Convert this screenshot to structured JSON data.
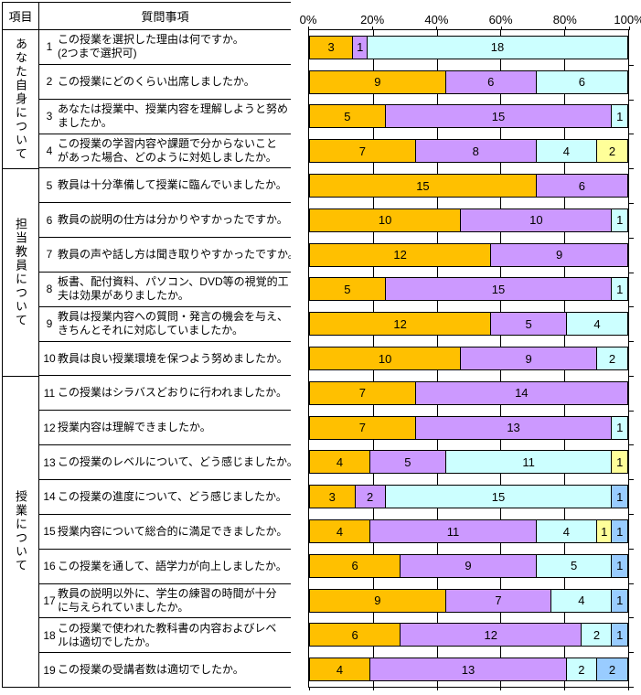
{
  "table": {
    "header": {
      "items": "項目",
      "questions": "質問事項"
    },
    "groups": [
      {
        "label": "あなた自身について",
        "rows": 4
      },
      {
        "label": "担当教員について",
        "rows": 6
      },
      {
        "label": "授業について",
        "rows": 9
      }
    ],
    "questions": [
      {
        "no": "1",
        "lines": [
          "この授業を選択した理由は何ですか。",
          "(2つまで選択可)"
        ]
      },
      {
        "no": "2",
        "lines": [
          "この授業にどのくらい出席しましたか。"
        ]
      },
      {
        "no": "3",
        "lines": [
          "あなたは授業中、授業内容を理解しようと努め",
          "ましたか。"
        ]
      },
      {
        "no": "4",
        "lines": [
          "この授業の学習内容や課題で分からないこと",
          "があった場合、どのように対処しましたか。"
        ]
      },
      {
        "no": "5",
        "lines": [
          "教員は十分準備して授業に臨んでいましたか。"
        ]
      },
      {
        "no": "6",
        "lines": [
          "教員の説明の仕方は分かりやすかったですか。"
        ]
      },
      {
        "no": "7",
        "lines": [
          "教員の声や話し方は聞き取りやすかったですか。"
        ]
      },
      {
        "no": "8",
        "lines": [
          "板書、配付資料、パソコン、DVD等の視覚的工",
          "夫は効果がありましたか。"
        ]
      },
      {
        "no": "9",
        "lines": [
          "教員は授業内容への質問・発言の機会を与え、",
          "きちんとそれに対応していましたか。"
        ]
      },
      {
        "no": "10",
        "lines": [
          "教員は良い授業環境を保つよう努めましたか。"
        ]
      },
      {
        "no": "11",
        "lines": [
          "この授業はシラバスどおりに行われましたか。"
        ]
      },
      {
        "no": "12",
        "lines": [
          "授業内容は理解できましたか。"
        ]
      },
      {
        "no": "13",
        "lines": [
          "この授業のレベルについて、どう感じましたか。"
        ]
      },
      {
        "no": "14",
        "lines": [
          "この授業の進度について、どう感じましたか。"
        ]
      },
      {
        "no": "15",
        "lines": [
          "授業内容について総合的に満足できましたか。"
        ]
      },
      {
        "no": "16",
        "lines": [
          "この授業を通して、語学力が向上しましたか。"
        ]
      },
      {
        "no": "17",
        "lines": [
          "教員の説明以外に、学生の練習の時間が十分",
          "に与えられていましたか。"
        ]
      },
      {
        "no": "18",
        "lines": [
          "この授業で使われた教科書の内容およびレベ",
          "ルは適切でしたか。"
        ]
      },
      {
        "no": "19",
        "lines": [
          "この授業の受講者数は適切でしたか。"
        ]
      }
    ]
  },
  "chart_data": {
    "type": "bar",
    "orientation": "horizontal",
    "stacked": true,
    "grid": true,
    "value_axis": {
      "position": "top",
      "min": 0,
      "max": 100,
      "tick_labels": [
        "0%",
        "20%",
        "40%",
        "60%",
        "80%",
        "100%"
      ]
    },
    "palette": {
      "orange": "#FFC000",
      "purple": "#CC99FF",
      "cyan": "#CCFFFF",
      "yellow": "#FFFF99",
      "blue": "#99CCFF"
    },
    "rows": [
      {
        "question_no": "1",
        "total": 22,
        "segments": [
          {
            "value": 3,
            "color": "orange"
          },
          {
            "value": 1,
            "color": "purple"
          },
          {
            "value": 18,
            "color": "cyan"
          }
        ]
      },
      {
        "question_no": "2",
        "total": 21,
        "segments": [
          {
            "value": 9,
            "color": "orange"
          },
          {
            "value": 6,
            "color": "purple"
          },
          {
            "value": 6,
            "color": "cyan"
          }
        ]
      },
      {
        "question_no": "3",
        "total": 21,
        "segments": [
          {
            "value": 5,
            "color": "orange"
          },
          {
            "value": 15,
            "color": "purple"
          },
          {
            "value": 1,
            "color": "cyan"
          }
        ]
      },
      {
        "question_no": "4",
        "total": 21,
        "segments": [
          {
            "value": 7,
            "color": "orange"
          },
          {
            "value": 8,
            "color": "purple"
          },
          {
            "value": 4,
            "color": "cyan"
          },
          {
            "value": 2,
            "color": "yellow"
          }
        ]
      },
      {
        "question_no": "5",
        "total": 21,
        "segments": [
          {
            "value": 15,
            "color": "orange"
          },
          {
            "value": 6,
            "color": "purple"
          }
        ]
      },
      {
        "question_no": "6",
        "total": 21,
        "segments": [
          {
            "value": 10,
            "color": "orange"
          },
          {
            "value": 10,
            "color": "purple"
          },
          {
            "value": 1,
            "color": "cyan"
          }
        ]
      },
      {
        "question_no": "7",
        "total": 21,
        "segments": [
          {
            "value": 12,
            "color": "orange"
          },
          {
            "value": 9,
            "color": "purple"
          }
        ]
      },
      {
        "question_no": "8",
        "total": 21,
        "segments": [
          {
            "value": 5,
            "color": "orange"
          },
          {
            "value": 15,
            "color": "purple"
          },
          {
            "value": 1,
            "color": "cyan"
          }
        ]
      },
      {
        "question_no": "9",
        "total": 21,
        "segments": [
          {
            "value": 12,
            "color": "orange"
          },
          {
            "value": 5,
            "color": "purple"
          },
          {
            "value": 4,
            "color": "cyan"
          }
        ]
      },
      {
        "question_no": "10",
        "total": 21,
        "segments": [
          {
            "value": 10,
            "color": "orange"
          },
          {
            "value": 9,
            "color": "purple"
          },
          {
            "value": 2,
            "color": "cyan"
          }
        ]
      },
      {
        "question_no": "11",
        "total": 21,
        "segments": [
          {
            "value": 7,
            "color": "orange"
          },
          {
            "value": 14,
            "color": "purple"
          }
        ]
      },
      {
        "question_no": "12",
        "total": 21,
        "segments": [
          {
            "value": 7,
            "color": "orange"
          },
          {
            "value": 13,
            "color": "purple"
          },
          {
            "value": 1,
            "color": "cyan"
          }
        ]
      },
      {
        "question_no": "13",
        "total": 21,
        "segments": [
          {
            "value": 4,
            "color": "orange"
          },
          {
            "value": 5,
            "color": "purple"
          },
          {
            "value": 11,
            "color": "cyan"
          },
          {
            "value": 1,
            "color": "yellow"
          }
        ]
      },
      {
        "question_no": "14",
        "total": 21,
        "segments": [
          {
            "value": 3,
            "color": "orange"
          },
          {
            "value": 2,
            "color": "purple"
          },
          {
            "value": 15,
            "color": "cyan"
          },
          {
            "value": 1,
            "color": "blue"
          }
        ]
      },
      {
        "question_no": "15",
        "total": 21,
        "segments": [
          {
            "value": 4,
            "color": "orange"
          },
          {
            "value": 11,
            "color": "purple"
          },
          {
            "value": 4,
            "color": "cyan"
          },
          {
            "value": 1,
            "color": "yellow"
          },
          {
            "value": 1,
            "color": "blue"
          }
        ]
      },
      {
        "question_no": "16",
        "total": 21,
        "segments": [
          {
            "value": 6,
            "color": "orange"
          },
          {
            "value": 9,
            "color": "purple"
          },
          {
            "value": 5,
            "color": "cyan"
          },
          {
            "value": 1,
            "color": "blue"
          }
        ]
      },
      {
        "question_no": "17",
        "total": 21,
        "segments": [
          {
            "value": 9,
            "color": "orange"
          },
          {
            "value": 7,
            "color": "purple"
          },
          {
            "value": 4,
            "color": "cyan"
          },
          {
            "value": 1,
            "color": "blue"
          }
        ]
      },
      {
        "question_no": "18",
        "total": 21,
        "segments": [
          {
            "value": 6,
            "color": "orange"
          },
          {
            "value": 12,
            "color": "purple"
          },
          {
            "value": 2,
            "color": "cyan"
          },
          {
            "value": 1,
            "color": "blue"
          }
        ]
      },
      {
        "question_no": "19",
        "total": 21,
        "segments": [
          {
            "value": 4,
            "color": "orange"
          },
          {
            "value": 13,
            "color": "purple"
          },
          {
            "value": 2,
            "color": "cyan"
          },
          {
            "value": 2,
            "color": "blue"
          }
        ]
      }
    ]
  }
}
